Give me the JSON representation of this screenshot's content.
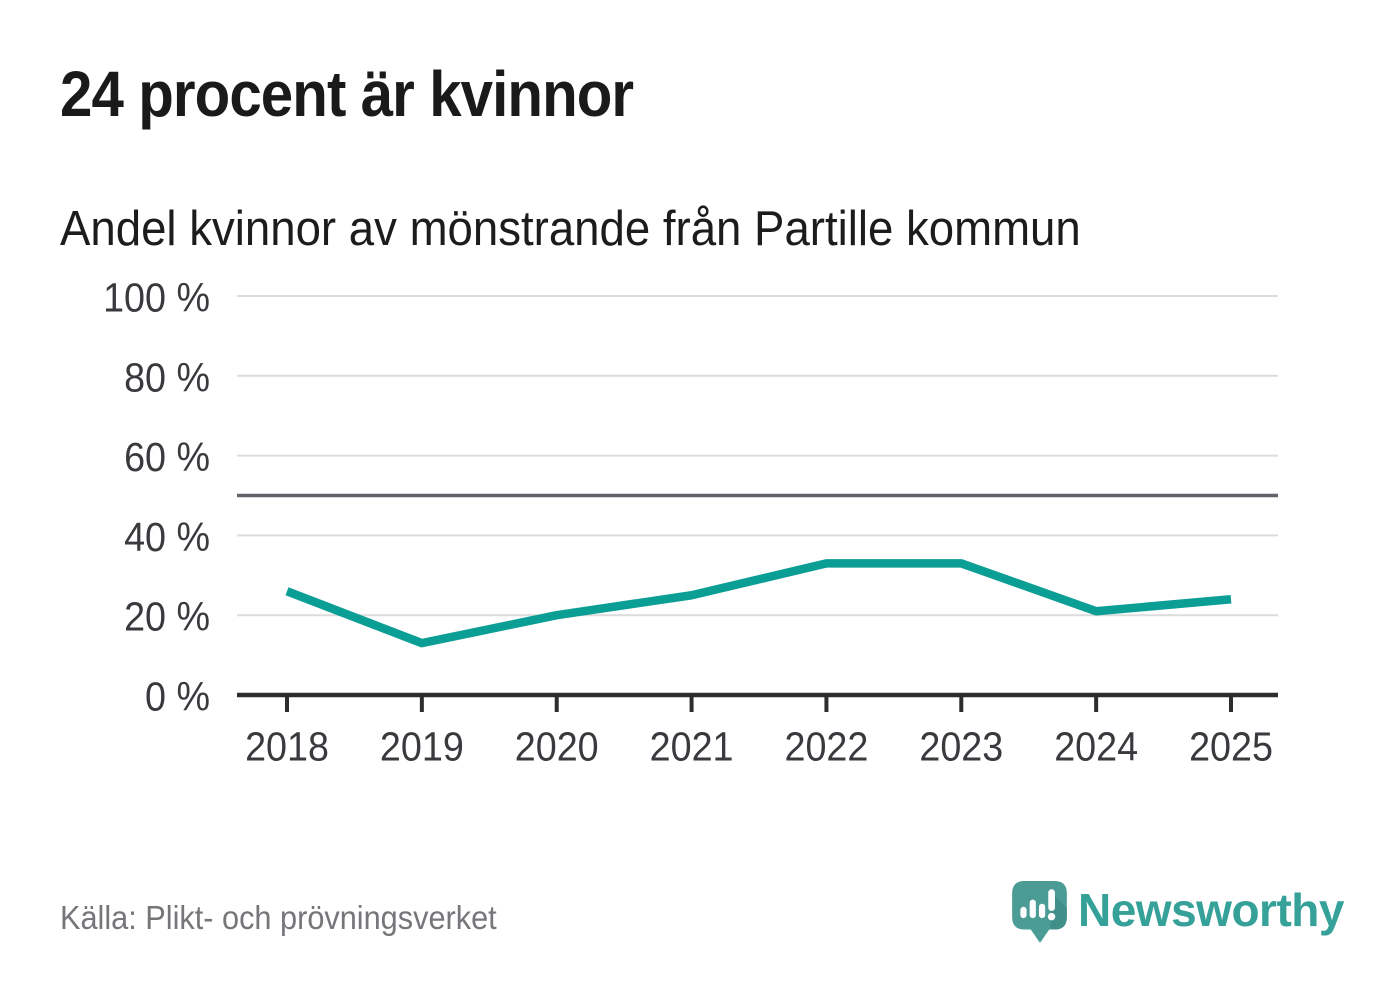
{
  "header": {
    "title": "24 procent är kvinnor",
    "subtitle": "Andel kvinnor av mönstrande från Partille kommun"
  },
  "footer": {
    "source": "Källa: Plikt- och prövningsverket",
    "brand": "Newsworthy",
    "logo_icon": "speech-bubble-with-bar-chart-and-exclamation"
  },
  "colors": {
    "line_teal": "#0a9e94",
    "brand_teal": "#35a199",
    "logo_bubble_teal": "#4a9c95",
    "logo_bubble_shade": "#3d8c86",
    "title_text": "#1a1a1a",
    "axis_label_text": "#3a3a3e",
    "gridline": "#dcdcdc",
    "reference_line": "#62626a",
    "axis_line": "#2d2d2d",
    "source_text": "#76767a"
  },
  "chart_data": {
    "type": "line",
    "title": "Andel kvinnor av mönstrande från Partille kommun",
    "x": [
      "2018",
      "2019",
      "2020",
      "2021",
      "2022",
      "2023",
      "2024",
      "2025"
    ],
    "series": [
      {
        "name": "Andel kvinnor",
        "values": [
          26,
          13,
          20,
          25,
          33,
          33,
          21,
          24
        ]
      }
    ],
    "unit": "%",
    "ylim": [
      0,
      100
    ],
    "yticks": [
      0,
      20,
      40,
      60,
      80,
      100
    ],
    "ytick_label_format": "{value} %",
    "reference_line": 50,
    "grid": "horizontal-only",
    "legend": "none",
    "xlabel": "",
    "ylabel": ""
  }
}
